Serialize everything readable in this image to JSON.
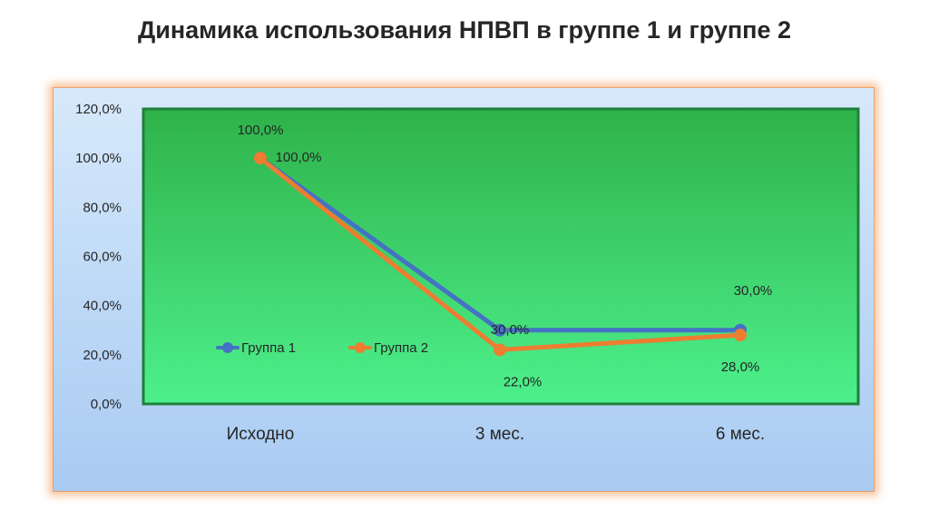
{
  "title": "Динамика использования НПВП в группе 1 и группе 2",
  "colors": {
    "series1": "#4472c4",
    "series2": "#ed7d31",
    "plot_bg_top": "#2fb24a",
    "plot_bg_bottom": "#4df08c",
    "frame_glow": "#f4a05f"
  },
  "chart_data": {
    "type": "line",
    "title": "Динамика использования НПВП в группе 1 и группе 2",
    "categories": [
      "Исходно",
      "3 мес.",
      "6 мес."
    ],
    "series": [
      {
        "name": "Группа 1",
        "values": [
          100.0,
          30.0,
          30.0
        ],
        "labels": [
          "100,0%",
          "30,0%",
          "30,0%"
        ]
      },
      {
        "name": "Группа 2",
        "values": [
          100.0,
          22.0,
          28.0
        ],
        "labels": [
          "100,0%",
          "22,0%",
          "28,0%"
        ]
      }
    ],
    "ylim": [
      0,
      120
    ],
    "yticks": [
      0,
      20,
      40,
      60,
      80,
      100,
      120
    ],
    "ytick_labels": [
      "0,0%",
      "20,0%",
      "40,0%",
      "60,0%",
      "80,0%",
      "100,0%",
      "120,0%"
    ],
    "xlabel": "",
    "ylabel": "",
    "grid": false,
    "legend_position": "bottom-left inside"
  }
}
